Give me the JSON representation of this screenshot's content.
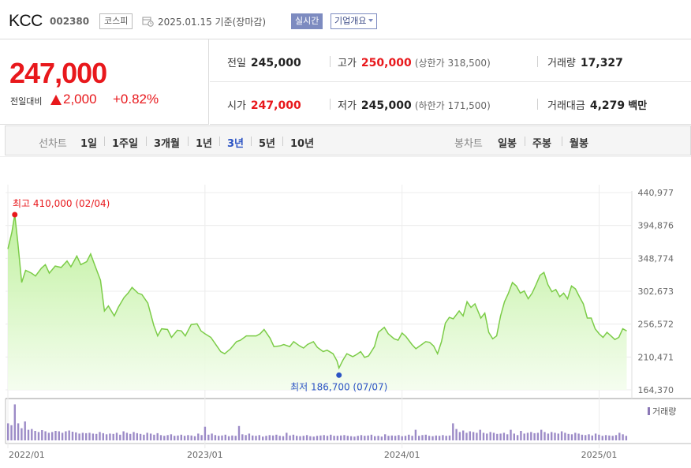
{
  "header": {
    "company": "KCC",
    "code": "002380",
    "market": "코스피",
    "date": "2025.01.15",
    "basis": "기준(장마감)",
    "realtime": "실시간",
    "corp_info": "기업개요"
  },
  "price": {
    "current": "247,000",
    "change_label": "전일대비",
    "change": "2,000",
    "change_pct": "+0.82%",
    "up_color": "#e8181c"
  },
  "stats": {
    "prev_label": "전일",
    "prev": "245,000",
    "high_label": "고가",
    "high": "250,000",
    "upper": "(상한가 318,500)",
    "volume_label": "거래량",
    "volume": "17,327",
    "open_label": "시가",
    "open": "247,000",
    "low_label": "저가",
    "low": "245,000",
    "lower": "(하한가 171,500)",
    "amount_label": "거래대금",
    "amount": "4,279",
    "amount_unit": "백만"
  },
  "toolbar": {
    "line_label": "선차트",
    "line_options": [
      "1일",
      "1주일",
      "3개월",
      "1년",
      "3년",
      "5년",
      "10년"
    ],
    "selected": "3년",
    "candle_label": "봉차트",
    "candle_options": [
      "일봉",
      "주봉",
      "월봉"
    ]
  },
  "chart_data": {
    "type": "area",
    "y_ticks": [
      "440,977",
      "394,876",
      "348,774",
      "302,673",
      "256,572",
      "210,471",
      "164,370"
    ],
    "ylim": [
      164370,
      440977
    ],
    "x_ticks": [
      "2022/01",
      "2023/01",
      "2024/01",
      "2025/01"
    ],
    "max_label": "최고 410,000 (02/04)",
    "min_label": "최저 186,700 (07/07)",
    "volume_label": "거래량",
    "line_color": "#7ccc48",
    "max_color": "#e8181c",
    "min_color": "#2c54c4",
    "price": [
      [
        2022.0,
        362000
      ],
      [
        2022.02,
        385000
      ],
      [
        2022.035,
        410000
      ],
      [
        2022.05,
        372000
      ],
      [
        2022.07,
        315000
      ],
      [
        2022.09,
        332000
      ],
      [
        2022.12,
        328000
      ],
      [
        2022.14,
        324000
      ],
      [
        2022.17,
        335000
      ],
      [
        2022.19,
        340000
      ],
      [
        2022.21,
        328000
      ],
      [
        2022.24,
        338000
      ],
      [
        2022.27,
        336000
      ],
      [
        2022.3,
        345000
      ],
      [
        2022.32,
        337000
      ],
      [
        2022.35,
        352000
      ],
      [
        2022.37,
        340000
      ],
      [
        2022.4,
        344000
      ],
      [
        2022.42,
        355000
      ],
      [
        2022.44,
        340000
      ],
      [
        2022.47,
        318000
      ],
      [
        2022.49,
        275000
      ],
      [
        2022.51,
        282000
      ],
      [
        2022.54,
        268000
      ],
      [
        2022.56,
        280000
      ],
      [
        2022.59,
        294000
      ],
      [
        2022.61,
        300000
      ],
      [
        2022.63,
        308000
      ],
      [
        2022.66,
        300000
      ],
      [
        2022.68,
        298000
      ],
      [
        2022.71,
        286000
      ],
      [
        2022.74,
        255000
      ],
      [
        2022.76,
        240000
      ],
      [
        2022.78,
        250000
      ],
      [
        2022.81,
        249000
      ],
      [
        2022.83,
        238000
      ],
      [
        2022.86,
        248000
      ],
      [
        2022.88,
        247000
      ],
      [
        2022.9,
        240000
      ],
      [
        2022.93,
        256000
      ],
      [
        2022.96,
        257000
      ],
      [
        2022.98,
        247000
      ],
      [
        2023.0,
        243000
      ],
      [
        2023.03,
        238000
      ],
      [
        2023.05,
        230000
      ],
      [
        2023.08,
        218000
      ],
      [
        2023.1,
        215000
      ],
      [
        2023.13,
        222000
      ],
      [
        2023.16,
        232000
      ],
      [
        2023.18,
        234000
      ],
      [
        2023.21,
        240000
      ],
      [
        2023.23,
        240000
      ],
      [
        2023.26,
        240000
      ],
      [
        2023.28,
        243000
      ],
      [
        2023.3,
        249000
      ],
      [
        2023.33,
        237000
      ],
      [
        2023.35,
        225000
      ],
      [
        2023.38,
        226000
      ],
      [
        2023.4,
        228000
      ],
      [
        2023.43,
        225000
      ],
      [
        2023.45,
        232000
      ],
      [
        2023.48,
        226000
      ],
      [
        2023.5,
        223000
      ],
      [
        2023.52,
        228000
      ],
      [
        2023.55,
        232000
      ],
      [
        2023.57,
        224000
      ],
      [
        2023.6,
        218000
      ],
      [
        2023.62,
        220000
      ],
      [
        2023.65,
        215000
      ],
      [
        2023.67,
        205000
      ],
      [
        2023.68,
        195000
      ],
      [
        2023.7,
        206000
      ],
      [
        2023.72,
        215000
      ],
      [
        2023.75,
        211000
      ],
      [
        2023.77,
        214000
      ],
      [
        2023.79,
        218000
      ],
      [
        2023.81,
        210000
      ],
      [
        2023.83,
        212000
      ],
      [
        2023.86,
        225000
      ],
      [
        2023.88,
        245000
      ],
      [
        2023.91,
        252000
      ],
      [
        2023.93,
        243000
      ],
      [
        2023.96,
        236000
      ],
      [
        2023.98,
        234000
      ],
      [
        2024.0,
        244000
      ],
      [
        2024.02,
        239000
      ],
      [
        2024.05,
        228000
      ],
      [
        2024.07,
        222000
      ],
      [
        2024.1,
        228000
      ],
      [
        2024.12,
        232000
      ],
      [
        2024.14,
        231000
      ],
      [
        2024.16,
        226000
      ],
      [
        2024.18,
        215000
      ],
      [
        2024.2,
        232000
      ],
      [
        2024.22,
        258000
      ],
      [
        2024.24,
        266000
      ],
      [
        2024.26,
        264000
      ],
      [
        2024.29,
        275000
      ],
      [
        2024.31,
        268000
      ],
      [
        2024.33,
        288000
      ],
      [
        2024.35,
        280000
      ],
      [
        2024.37,
        285000
      ],
      [
        2024.4,
        265000
      ],
      [
        2024.42,
        272000
      ],
      [
        2024.44,
        245000
      ],
      [
        2024.46,
        236000
      ],
      [
        2024.48,
        240000
      ],
      [
        2024.5,
        268000
      ],
      [
        2024.52,
        288000
      ],
      [
        2024.54,
        300000
      ],
      [
        2024.56,
        315000
      ],
      [
        2024.58,
        310000
      ],
      [
        2024.6,
        300000
      ],
      [
        2024.62,
        303000
      ],
      [
        2024.64,
        292000
      ],
      [
        2024.66,
        300000
      ],
      [
        2024.68,
        312000
      ],
      [
        2024.7,
        325000
      ],
      [
        2024.72,
        329000
      ],
      [
        2024.74,
        312000
      ],
      [
        2024.76,
        302000
      ],
      [
        2024.78,
        305000
      ],
      [
        2024.8,
        295000
      ],
      [
        2024.82,
        300000
      ],
      [
        2024.84,
        292000
      ],
      [
        2024.86,
        310000
      ],
      [
        2024.88,
        306000
      ],
      [
        2024.9,
        295000
      ],
      [
        2024.92,
        285000
      ],
      [
        2024.94,
        265000
      ],
      [
        2024.96,
        265000
      ],
      [
        2024.98,
        250000
      ],
      [
        2025.0,
        243000
      ],
      [
        2025.02,
        238000
      ],
      [
        2025.04,
        245000
      ],
      [
        2025.06,
        240000
      ],
      [
        2025.08,
        235000
      ],
      [
        2025.1,
        238000
      ],
      [
        2025.12,
        250000
      ],
      [
        2025.14,
        247000
      ]
    ],
    "volume": [
      0.45,
      0.4,
      0.95,
      0.45,
      0.32,
      0.5,
      0.28,
      0.3,
      0.25,
      0.22,
      0.27,
      0.24,
      0.2,
      0.22,
      0.25,
      0.24,
      0.2,
      0.24,
      0.26,
      0.23,
      0.21,
      0.18,
      0.2,
      0.19,
      0.2,
      0.18,
      0.17,
      0.22,
      0.19,
      0.16,
      0.18,
      0.17,
      0.2,
      0.15,
      0.24,
      0.2,
      0.17,
      0.22,
      0.19,
      0.17,
      0.15,
      0.2,
      0.18,
      0.15,
      0.19,
      0.14,
      0.12,
      0.14,
      0.16,
      0.12,
      0.13,
      0.15,
      0.12,
      0.14,
      0.13,
      0.11,
      0.18,
      0.14,
      0.36,
      0.15,
      0.18,
      0.14,
      0.12,
      0.13,
      0.15,
      0.11,
      0.13,
      0.12,
      0.38,
      0.16,
      0.14,
      0.18,
      0.13,
      0.12,
      0.14,
      0.1,
      0.12,
      0.14,
      0.13,
      0.15,
      0.12,
      0.11,
      0.2,
      0.13,
      0.15,
      0.12,
      0.11,
      0.12,
      0.14,
      0.11,
      0.1,
      0.12,
      0.13,
      0.14,
      0.12,
      0.15,
      0.12,
      0.12,
      0.13,
      0.14,
      0.12,
      0.11,
      0.1,
      0.12,
      0.14,
      0.12,
      0.13,
      0.15,
      0.11,
      0.12,
      0.1,
      0.16,
      0.12,
      0.13,
      0.12,
      0.14,
      0.11,
      0.12,
      0.15,
      0.12,
      0.28,
      0.12,
      0.14,
      0.15,
      0.12,
      0.11,
      0.13,
      0.12,
      0.14,
      0.12,
      0.13,
      0.45,
      0.3,
      0.22,
      0.26,
      0.2,
      0.24,
      0.22,
      0.2,
      0.28,
      0.2,
      0.18,
      0.22,
      0.2,
      0.17,
      0.18,
      0.2,
      0.16,
      0.28,
      0.18,
      0.14,
      0.25,
      0.18,
      0.2,
      0.22,
      0.19,
      0.2,
      0.28,
      0.22,
      0.18,
      0.22,
      0.2,
      0.18,
      0.24,
      0.2,
      0.17,
      0.16,
      0.2,
      0.18,
      0.15,
      0.14,
      0.16,
      0.13,
      0.18,
      0.15,
      0.12,
      0.14,
      0.13,
      0.12,
      0.14,
      0.2,
      0.16,
      0.12
    ]
  }
}
